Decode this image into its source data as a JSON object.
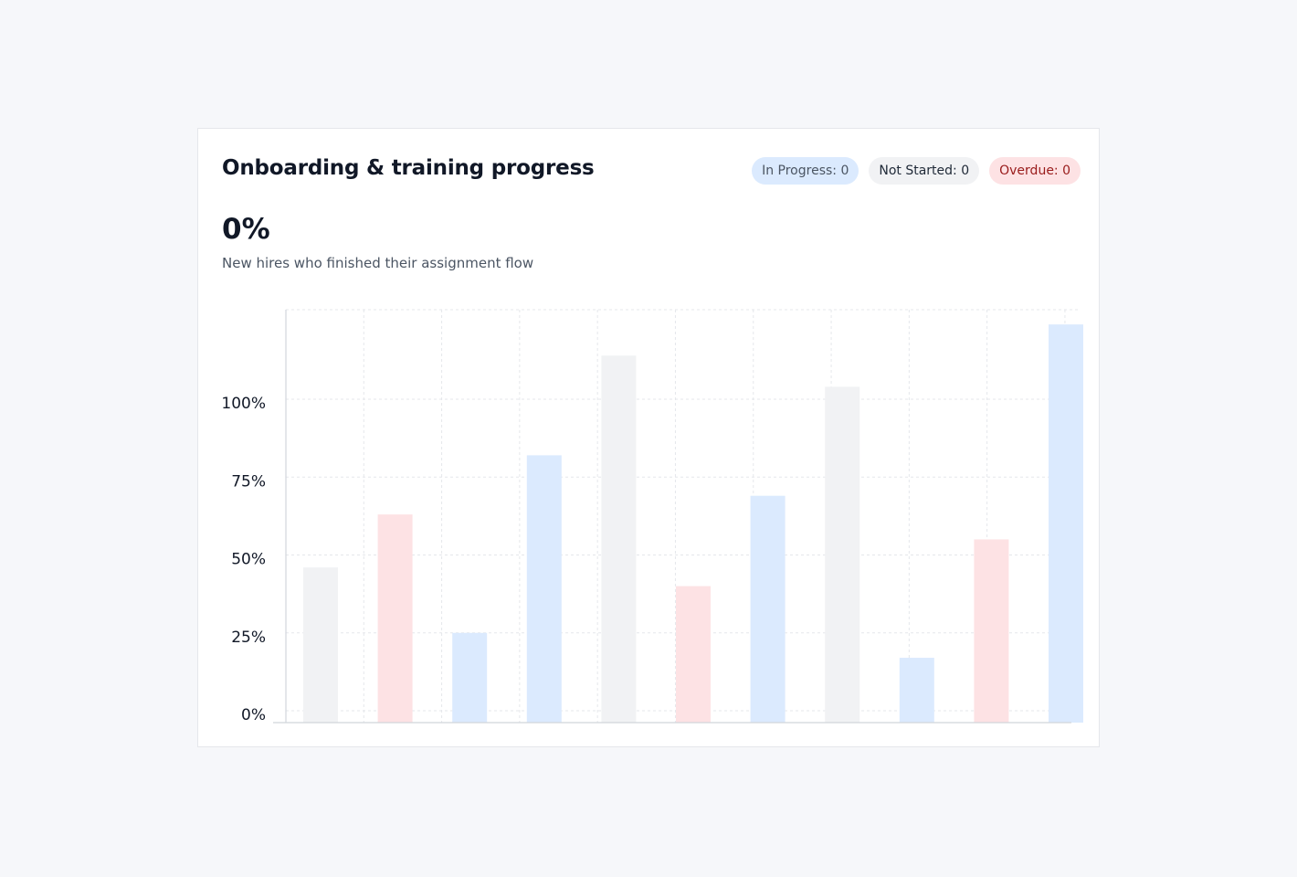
{
  "card": {
    "title": "Onboarding & training progress",
    "badges": {
      "in_progress": "In Progress: 0",
      "not_started": "Not Started: 0",
      "overdue": "Overdue: 0"
    },
    "metric": {
      "value": "0%",
      "caption": "New hires who finished their assignment flow"
    }
  },
  "colors": {
    "gray": "#f1f2f4",
    "pink": "#fde2e4",
    "blue": "#dbeafe",
    "grid": "#e5e7eb",
    "axis": "#d1d5db"
  },
  "chart_data": {
    "type": "bar",
    "title": "",
    "xlabel": "",
    "ylabel": "",
    "ylim": [
      0,
      128
    ],
    "y_ticks": [
      0,
      25,
      50,
      75,
      100
    ],
    "y_tick_labels": [
      "0%",
      "25%",
      "50%",
      "75%",
      "100%"
    ],
    "grid": true,
    "values": [
      46,
      63,
      25,
      82,
      114,
      40,
      69,
      104,
      17,
      55,
      124
    ],
    "bar_colors": [
      "gray",
      "pink",
      "blue",
      "blue",
      "gray",
      "pink",
      "blue",
      "gray",
      "blue",
      "pink",
      "blue"
    ]
  }
}
